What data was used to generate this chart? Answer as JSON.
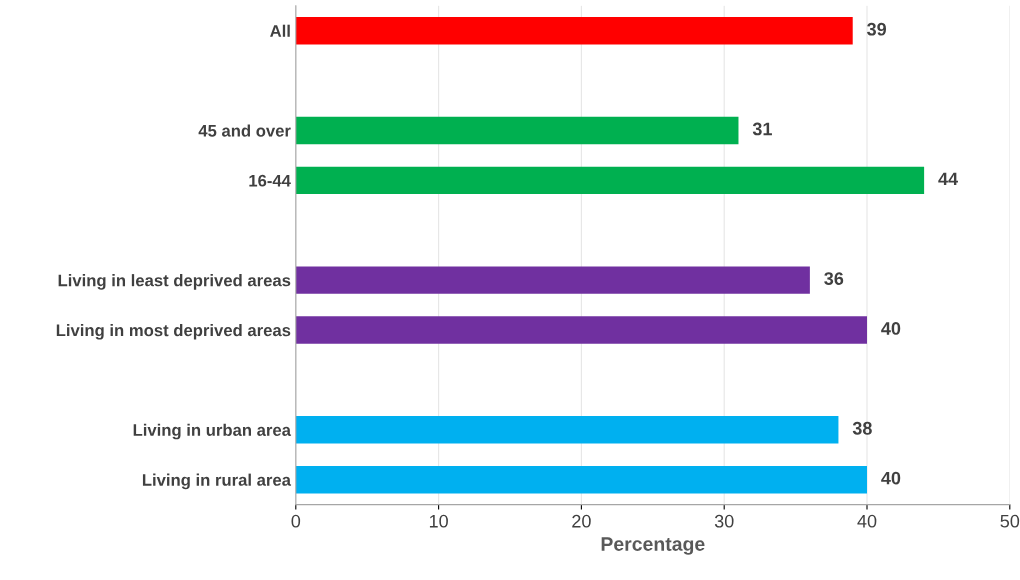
{
  "chart_data": {
    "type": "bar",
    "orientation": "horizontal",
    "xlabel": "Percentage",
    "categories": [
      "All",
      null,
      "45 and over",
      "16-44",
      null,
      "Living in least deprived areas",
      "Living in most deprived areas",
      null,
      "Living in urban area",
      "Living in rural area"
    ],
    "values": [
      39,
      null,
      31,
      44,
      null,
      36,
      40,
      null,
      38,
      40
    ],
    "colors": [
      "#ff0000",
      null,
      "#00b050",
      "#00b050",
      null,
      "#7030a0",
      "#7030a0",
      null,
      "#00b0f0",
      "#00b0f0"
    ],
    "xlim": [
      0,
      50
    ],
    "xticks": [
      0,
      10,
      20,
      30,
      40,
      50
    ],
    "grid": "x",
    "data_labels": true
  }
}
